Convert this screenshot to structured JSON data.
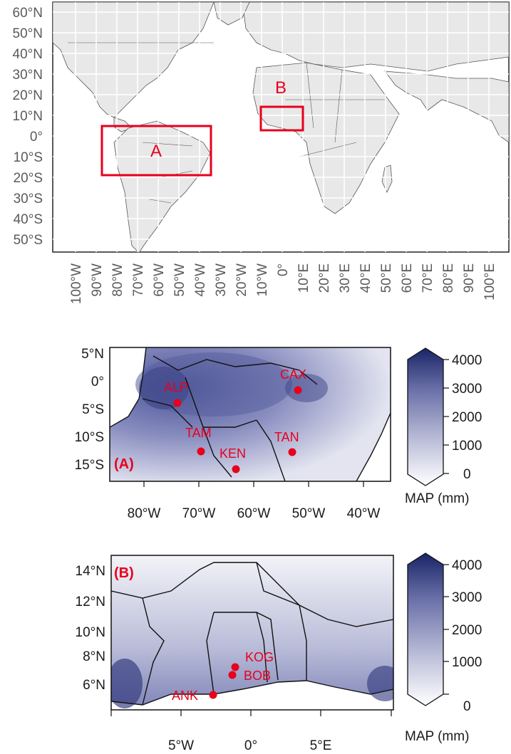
{
  "overview_map": {
    "lat_labels": [
      "60°N",
      "50°N",
      "40°N",
      "30°N",
      "20°N",
      "10°N",
      "0°",
      "10°S",
      "20°S",
      "30°S",
      "40°S",
      "50°S"
    ],
    "lon_labels": [
      "100°W",
      "90°W",
      "80°W",
      "70°W",
      "60°W",
      "50°W",
      "40°W",
      "30°W",
      "20°W",
      "10°W",
      "0°",
      "10°E",
      "20°E",
      "30°E",
      "40°E",
      "50°E",
      "60°E",
      "70°E",
      "80°E",
      "90°E",
      "100°E"
    ],
    "regions": [
      {
        "label": "A",
        "color": "#e8001c"
      },
      {
        "label": "B",
        "color": "#e8001c"
      }
    ]
  },
  "panel_a": {
    "panel_label": "(A)",
    "lat_labels": [
      "5°N",
      "0°",
      "5°S",
      "10°S",
      "15°S"
    ],
    "lon_labels": [
      "80°W",
      "70°W",
      "60°W",
      "50°W",
      "40°W"
    ],
    "sites": [
      "ALP",
      "CAX",
      "TAM",
      "TAN",
      "KEN"
    ],
    "colorbar": {
      "ticks": [
        "4000",
        "3000",
        "2000",
        "1000",
        "0"
      ],
      "title": "MAP (mm)",
      "min": 0,
      "max": 4000,
      "low_color": "#ffffff",
      "high_color": "#1a2466"
    }
  },
  "panel_b": {
    "panel_label": "(B)",
    "lat_labels": [
      "14°N",
      "12°N",
      "10°N",
      "8°N",
      "6°N"
    ],
    "lon_labels": [
      "5°W",
      "0°",
      "5°E"
    ],
    "sites": [
      "KOG",
      "BOB",
      "ANK"
    ],
    "colorbar": {
      "ticks": [
        "4000",
        "3000",
        "2000",
        "1000",
        "0"
      ],
      "title": "MAP (mm)",
      "min": 0,
      "max": 4000,
      "low_color": "#ffffff",
      "high_color": "#1a2466"
    }
  }
}
